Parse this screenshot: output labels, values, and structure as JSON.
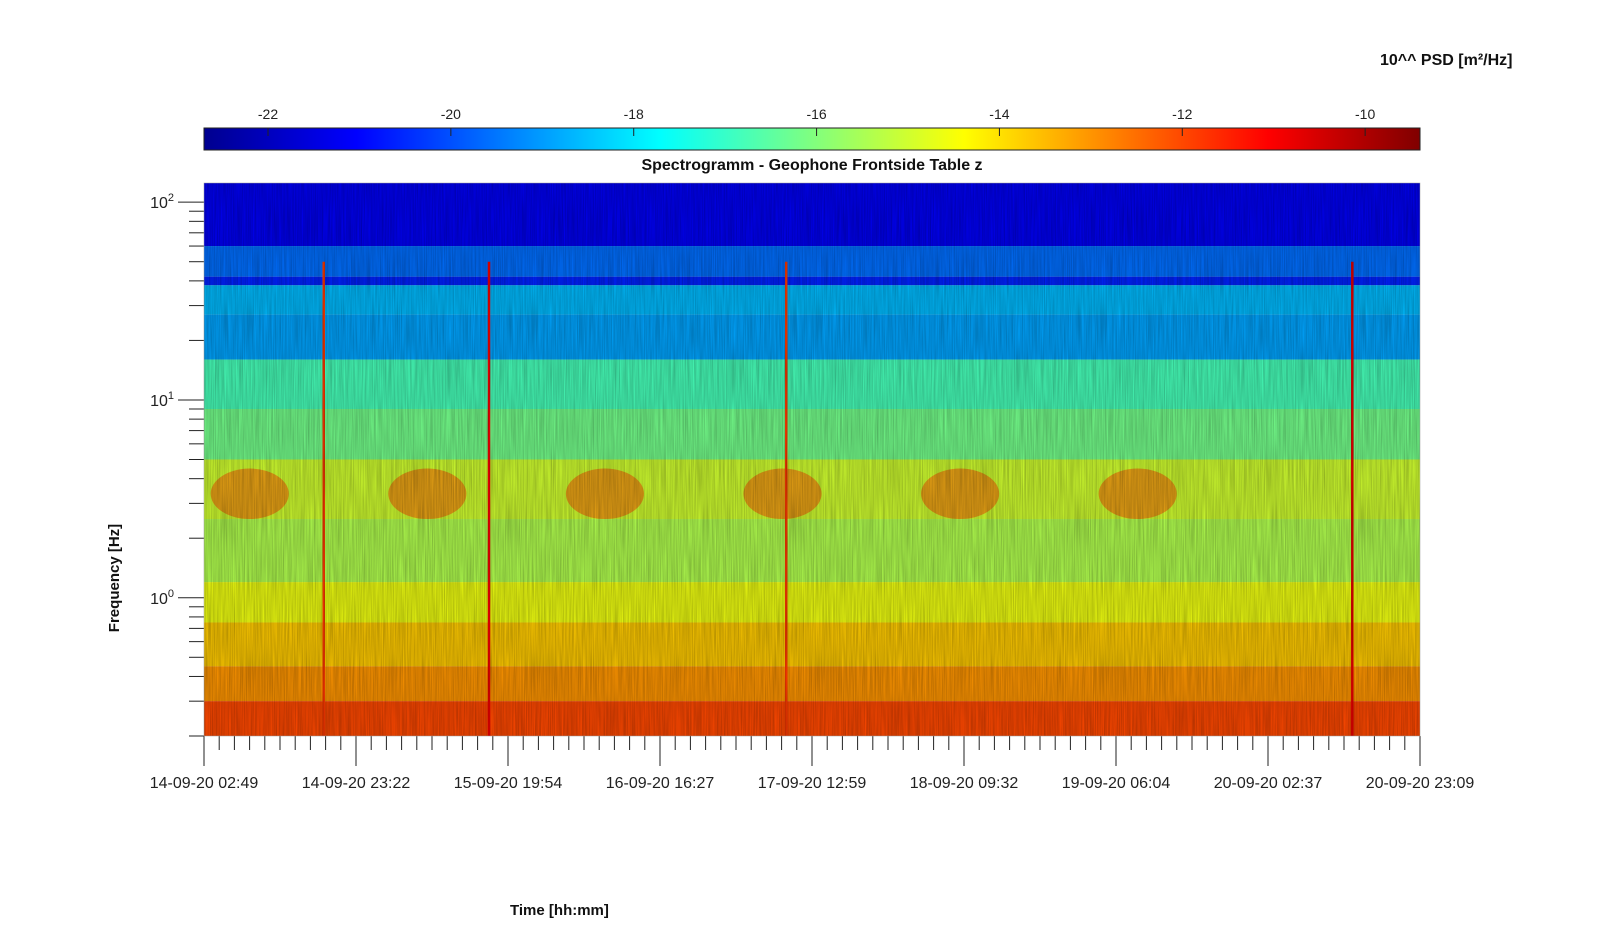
{
  "chart_data": {
    "type": "heatmap",
    "title": "Spectrogramm - Geophone Frontside Table z",
    "xlabel": "Time [hh:mm]",
    "ylabel": "Frequency [Hz]",
    "colorbar": {
      "label": "10^^ PSD [m²/Hz]",
      "range": [
        -22.7,
        -9.4
      ],
      "ticks": [
        -22,
        -20,
        -18,
        -16,
        -14,
        -12,
        -10
      ],
      "colormap": "jet",
      "placement": "top"
    },
    "x_ticks": [
      "14-09-20 02:49",
      "14-09-20 23:22",
      "15-09-20 19:54",
      "16-09-20 16:27",
      "17-09-20 12:59",
      "18-09-20 09:32",
      "19-09-20 06:04",
      "20-09-20 02:37",
      "20-09-20 23:09"
    ],
    "y_scale": "log",
    "y_ticks": [
      {
        "base": "10",
        "exp": "0",
        "value": 1
      },
      {
        "base": "10",
        "exp": "1",
        "value": 10
      },
      {
        "base": "10",
        "exp": "2",
        "value": 100
      }
    ],
    "ylim": [
      0.2,
      125
    ],
    "frequency_bands": [
      {
        "f_low": 60,
        "f_high": 125,
        "log_psd": -21.2
      },
      {
        "f_low": 42,
        "f_high": 60,
        "log_psd": -19.6
      },
      {
        "f_low": 38,
        "f_high": 42,
        "log_psd": -20.6
      },
      {
        "f_low": 27,
        "f_high": 38,
        "log_psd": -18.6
      },
      {
        "f_low": 16,
        "f_high": 27,
        "log_psd": -18.9
      },
      {
        "f_low": 9,
        "f_high": 16,
        "log_psd": -16.8
      },
      {
        "f_low": 5,
        "f_high": 9,
        "log_psd": -16.2
      },
      {
        "f_low": 2.5,
        "f_high": 5,
        "log_psd": -15.0
      },
      {
        "f_low": 1.2,
        "f_high": 2.5,
        "log_psd": -15.4
      },
      {
        "f_low": 0.75,
        "f_high": 1.2,
        "log_psd": -14.6
      },
      {
        "f_low": 0.45,
        "f_high": 0.75,
        "log_psd": -13.7
      },
      {
        "f_low": 0.3,
        "f_high": 0.45,
        "log_psd": -13.0
      },
      {
        "f_low": 0.2,
        "f_high": 0.3,
        "log_psd": -12.0
      }
    ],
    "daily_activity": {
      "f_low": 2.5,
      "f_high": 4.5,
      "peak_log_psd": -12.2,
      "center_times": [
        "14-09-20 09:00",
        "15-09-20 09:00",
        "16-09-20 09:00",
        "17-09-20 09:00",
        "18-09-20 09:00",
        "19-09-20 09:00"
      ]
    },
    "transient_events": [
      {
        "time": "14-09-20 19:00",
        "log_psd": -11.8
      },
      {
        "time": "15-09-20 17:20",
        "log_psd": -11.0
      },
      {
        "time": "17-09-20 09:30",
        "log_psd": -11.8
      },
      {
        "time": "20-09-20 14:00",
        "log_psd": -10.8
      }
    ]
  }
}
